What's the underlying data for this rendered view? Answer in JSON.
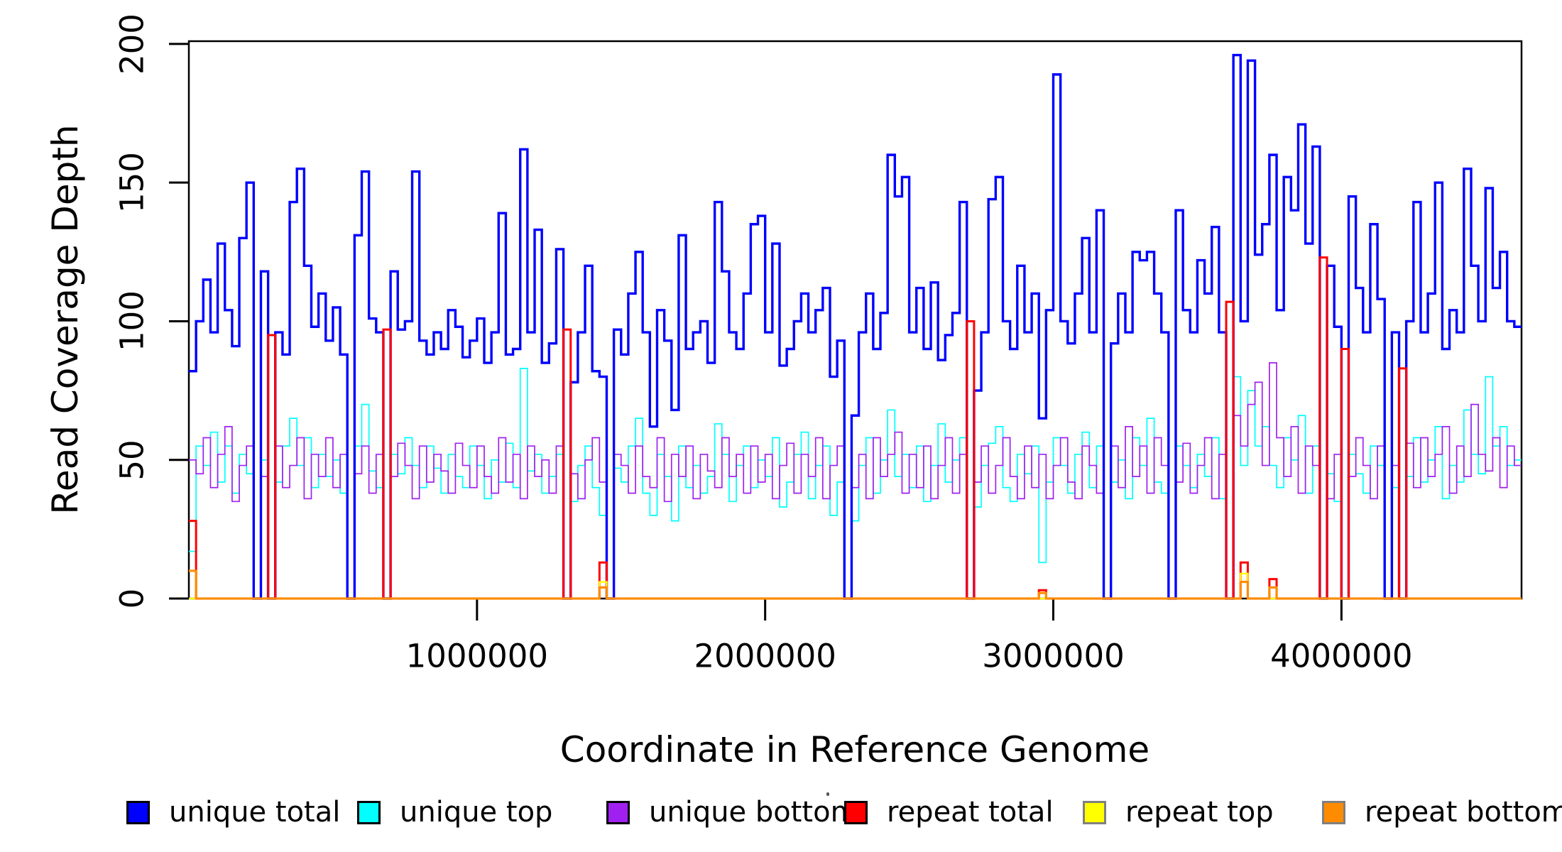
{
  "axes": {
    "x": {
      "label": "Coordinate in Reference Genome",
      "ticks": [
        {
          "value": 1000000,
          "label": "1000000"
        },
        {
          "value": 2000000,
          "label": "2000000"
        },
        {
          "value": 3000000,
          "label": "3000000"
        },
        {
          "value": 4000000,
          "label": "4000000"
        }
      ]
    },
    "y": {
      "label": "Read Coverage Depth",
      "ticks": [
        {
          "value": 0,
          "label": "0"
        },
        {
          "value": 50,
          "label": "50"
        },
        {
          "value": 100,
          "label": "100"
        },
        {
          "value": 150,
          "label": "150"
        },
        {
          "value": 200,
          "label": "200"
        }
      ]
    }
  },
  "legend": {
    "items": [
      {
        "label": "unique total",
        "color": "#0000FF",
        "border": "#000000"
      },
      {
        "label": "unique top",
        "color": "#00FFFF",
        "border": "#000000"
      },
      {
        "label": "unique bottom",
        "color": "#A020F0",
        "border": "#000000"
      },
      {
        "label": "repeat total",
        "color": "#FF0000",
        "border": "#000000"
      },
      {
        "label": "repeat top",
        "color": "#FFFF00",
        "border": "#808080"
      },
      {
        "label": "repeat bottom",
        "color": "#FF8C00",
        "border": "#808080"
      }
    ]
  },
  "chart_data": {
    "type": "line",
    "step": true,
    "grid": false,
    "xlim": [
      0,
      4625000
    ],
    "ylim": [
      0,
      201
    ],
    "bin_size": 25000,
    "n_bins": 185,
    "series": [
      {
        "name": "unique top",
        "color": "#00FFFF",
        "lwd": 1.7,
        "values": [
          17,
          55,
          48,
          60,
          42,
          55,
          38,
          52,
          45,
          0,
          50,
          0,
          42,
          55,
          65,
          48,
          58,
          40,
          52,
          44,
          50,
          38,
          0,
          55,
          70,
          46,
          40,
          0,
          52,
          45,
          58,
          48,
          40,
          55,
          47,
          38,
          52,
          44,
          40,
          55,
          48,
          36,
          50,
          42,
          56,
          40,
          83,
          46,
          52,
          38,
          44,
          52,
          0,
          35,
          48,
          55,
          40,
          30,
          0,
          47,
          42,
          55,
          65,
          38,
          30,
          52,
          44,
          28,
          55,
          40,
          48,
          38,
          44,
          63,
          52,
          35,
          48,
          55,
          40,
          50,
          44,
          58,
          33,
          42,
          52,
          60,
          36,
          48,
          55,
          30,
          42,
          0,
          28,
          48,
          58,
          38,
          50,
          68,
          44,
          52,
          40,
          55,
          35,
          48,
          63,
          42,
          50,
          58,
          0,
          33,
          48,
          56,
          62,
          40,
          35,
          52,
          45,
          55,
          13,
          42,
          58,
          48,
          38,
          52,
          60,
          40,
          55,
          0,
          42,
          50,
          36,
          58,
          48,
          65,
          42,
          38,
          0,
          55,
          48,
          40,
          52,
          44,
          58,
          36,
          0,
          80,
          48,
          75,
          55,
          62,
          48,
          40,
          58,
          50,
          66,
          38,
          55,
          0,
          45,
          35,
          0,
          52,
          45,
          38,
          55,
          48,
          0,
          40,
          0,
          44,
          58,
          42,
          50,
          62,
          36,
          48,
          42,
          68,
          52,
          45,
          80,
          55,
          62,
          48,
          50
        ]
      },
      {
        "name": "unique bottom",
        "color": "#A020F0",
        "lwd": 1.7,
        "values": [
          50,
          45,
          58,
          40,
          52,
          62,
          35,
          48,
          55,
          0,
          44,
          0,
          55,
          40,
          48,
          58,
          36,
          52,
          44,
          58,
          40,
          52,
          0,
          45,
          55,
          38,
          52,
          0,
          44,
          56,
          48,
          36,
          55,
          42,
          52,
          46,
          38,
          56,
          48,
          40,
          55,
          44,
          38,
          58,
          42,
          52,
          36,
          55,
          44,
          50,
          38,
          55,
          0,
          45,
          36,
          50,
          58,
          42,
          0,
          52,
          48,
          38,
          55,
          44,
          40,
          58,
          35,
          52,
          44,
          55,
          36,
          52,
          46,
          40,
          58,
          44,
          52,
          38,
          55,
          42,
          52,
          36,
          48,
          56,
          38,
          52,
          44,
          58,
          36,
          48,
          55,
          0,
          40,
          52,
          36,
          58,
          44,
          52,
          60,
          38,
          52,
          40,
          55,
          36,
          48,
          58,
          38,
          52,
          0,
          42,
          55,
          38,
          48,
          58,
          44,
          36,
          55,
          40,
          52,
          36,
          48,
          58,
          42,
          36,
          55,
          48,
          38,
          0,
          55,
          40,
          62,
          44,
          55,
          38,
          58,
          48,
          0,
          42,
          56,
          38,
          48,
          58,
          36,
          52,
          0,
          66,
          55,
          70,
          78,
          48,
          85,
          58,
          44,
          62,
          38,
          55,
          48,
          0,
          36,
          52,
          0,
          44,
          58,
          48,
          36,
          55,
          0,
          48,
          0,
          56,
          40,
          58,
          44,
          52,
          62,
          38,
          55,
          44,
          70,
          52,
          46,
          58,
          40,
          55,
          48
        ]
      },
      {
        "name": "unique total",
        "color": "#0000FF",
        "lwd": 3.4,
        "values": [
          82,
          100,
          115,
          96,
          128,
          104,
          91,
          130,
          150,
          0,
          118,
          0,
          96,
          88,
          143,
          155,
          120,
          98,
          110,
          93,
          105,
          88,
          0,
          131,
          154,
          101,
          96,
          0,
          118,
          97,
          100,
          154,
          93,
          88,
          96,
          90,
          104,
          98,
          87,
          93,
          101,
          85,
          96,
          139,
          88,
          90,
          162,
          96,
          133,
          85,
          92,
          126,
          0,
          78,
          96,
          120,
          82,
          80,
          0,
          97,
          88,
          110,
          125,
          96,
          62,
          104,
          93,
          68,
          131,
          90,
          96,
          100,
          85,
          143,
          118,
          96,
          90,
          110,
          135,
          138,
          96,
          128,
          84,
          90,
          100,
          110,
          96,
          104,
          112,
          80,
          93,
          0,
          66,
          96,
          110,
          90,
          103,
          160,
          145,
          152,
          96,
          112,
          90,
          114,
          86,
          95,
          103,
          143,
          0,
          75,
          96,
          144,
          152,
          100,
          90,
          120,
          96,
          110,
          65,
          104,
          189,
          100,
          92,
          110,
          130,
          96,
          140,
          0,
          92,
          110,
          96,
          125,
          122,
          125,
          110,
          96,
          0,
          140,
          104,
          96,
          122,
          110,
          134,
          96,
          0,
          196,
          100,
          194,
          124,
          135,
          160,
          104,
          152,
          140,
          171,
          128,
          163,
          0,
          120,
          98,
          0,
          145,
          112,
          96,
          135,
          108,
          0,
          96,
          0,
          100,
          143,
          96,
          110,
          150,
          90,
          104,
          96,
          155,
          120,
          100,
          148,
          112,
          125,
          100,
          98
        ]
      },
      {
        "name": "repeat total",
        "color": "#FF0000",
        "lwd": 3.0,
        "sparse": {
          "0": 28,
          "11": 95,
          "27": 97,
          "52": 97,
          "57": 13,
          "108": 100,
          "118": 3,
          "144": 107,
          "146": 13,
          "150": 7,
          "157": 123,
          "160": 90,
          "168": 83
        }
      },
      {
        "name": "repeat top",
        "color": "#FFFF00",
        "lwd": 2.4,
        "sparse": {
          "57": 6,
          "146": 9
        }
      },
      {
        "name": "repeat bottom",
        "color": "#FF8C00",
        "lwd": 3.2,
        "sparse": {
          "0": 10,
          "57": 4,
          "118": 2,
          "146": 6,
          "150": 4
        }
      }
    ]
  }
}
